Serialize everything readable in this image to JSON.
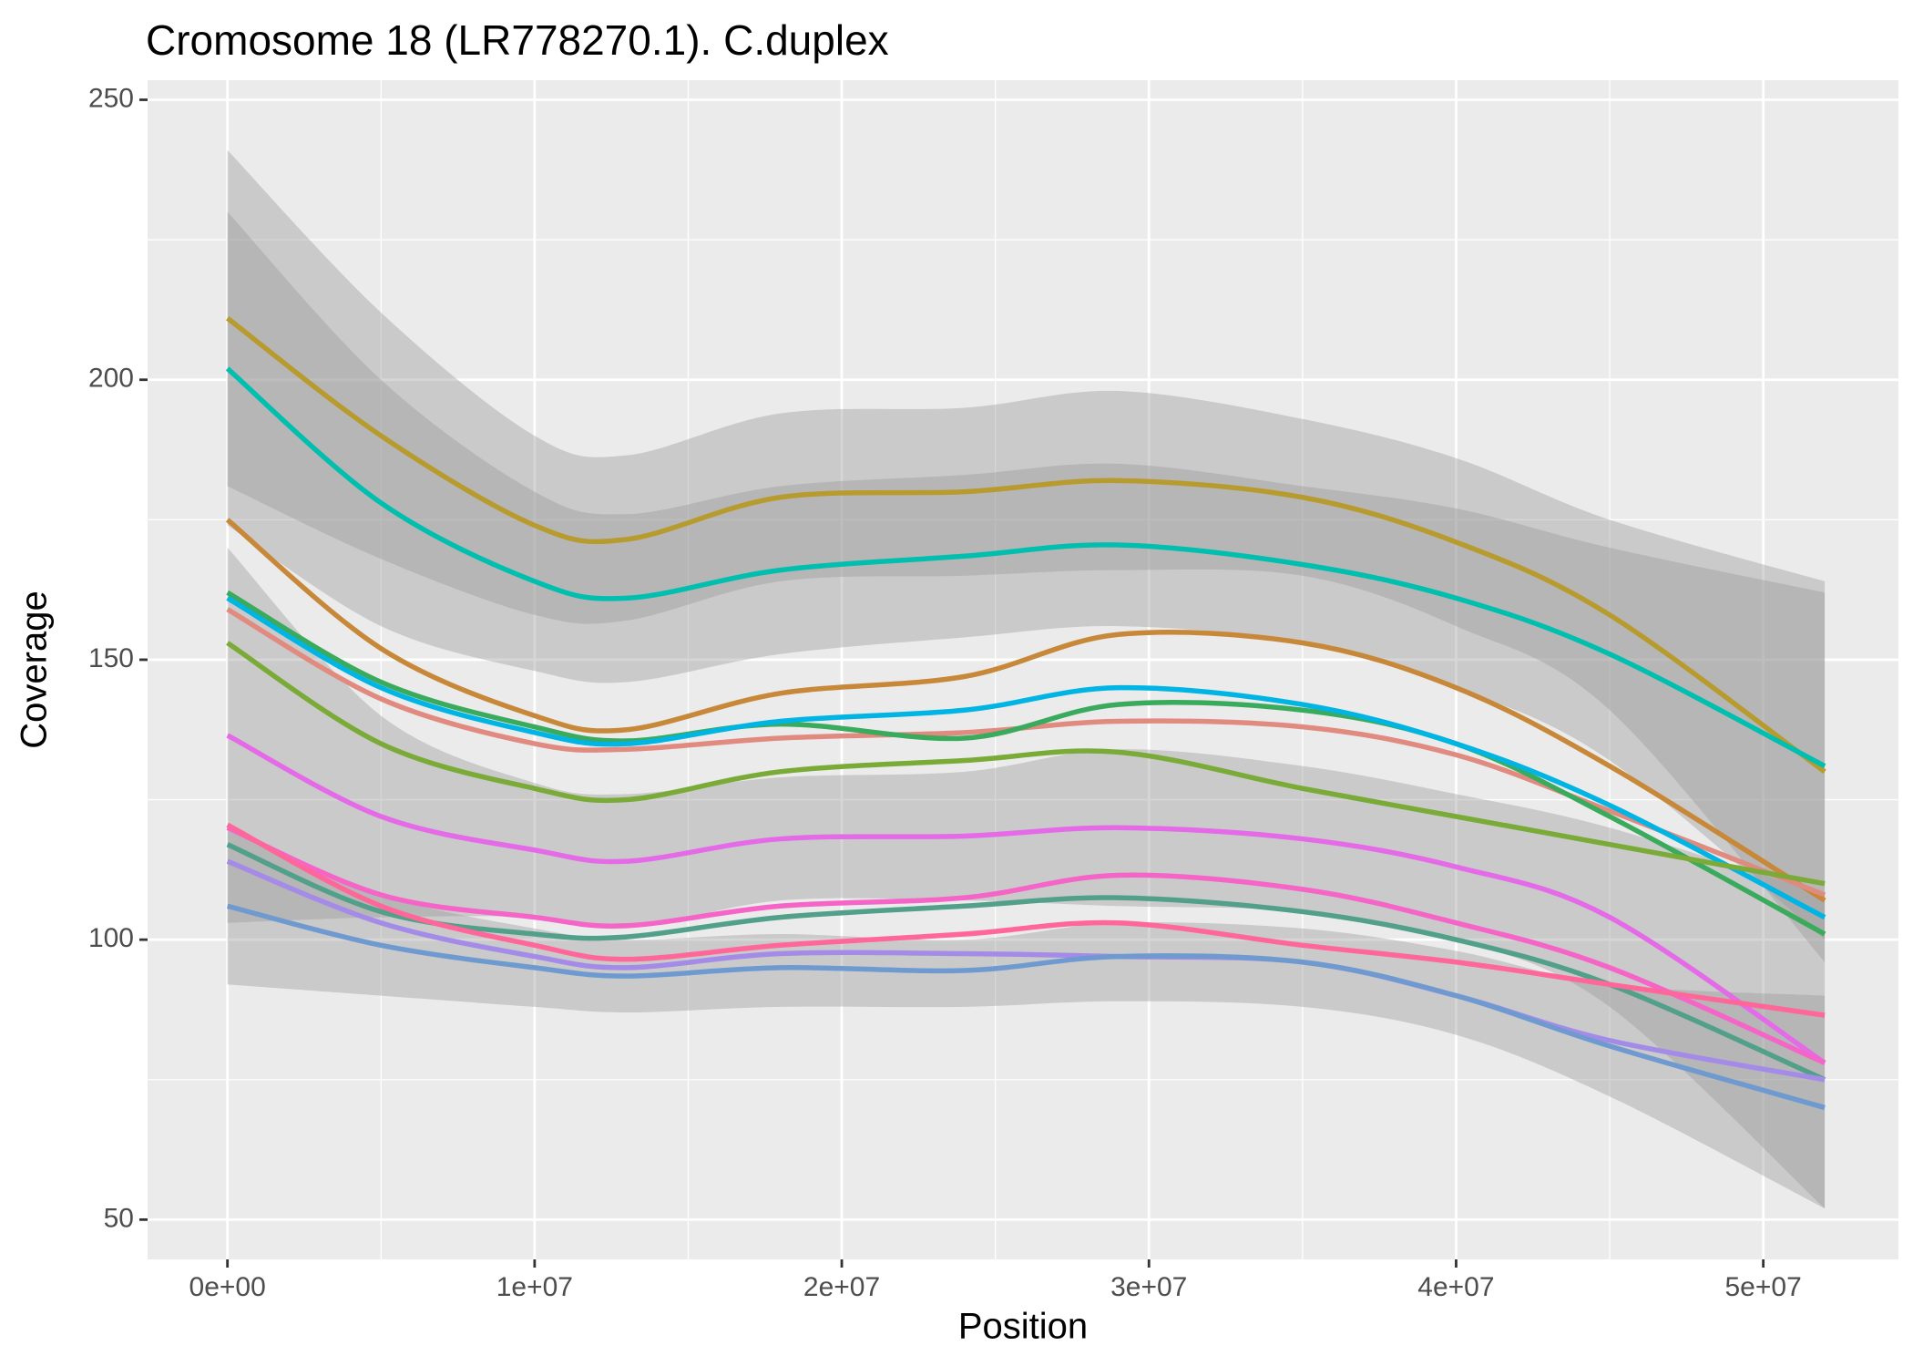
{
  "chart_data": {
    "type": "line",
    "title": "Cromosome 18 (LR778270.1). C.duplex",
    "x_label": "Position",
    "y_label": "Coverage",
    "x": [
      0,
      5000000,
      10000000,
      13000000,
      18000000,
      24000000,
      29000000,
      35000000,
      40000000,
      45000000,
      52000000
    ],
    "xlim": [
      -2600000,
      54400000
    ],
    "xticks": [
      {
        "value": 0,
        "label": "0e+00"
      },
      {
        "value": 10000000,
        "label": "1e+07"
      },
      {
        "value": 20000000,
        "label": "2e+07"
      },
      {
        "value": 30000000,
        "label": "3e+07"
      },
      {
        "value": 40000000,
        "label": "4e+07"
      },
      {
        "value": 50000000,
        "label": "5e+07"
      }
    ],
    "ylim": [
      42.9,
      253.5
    ],
    "yticks": [
      50,
      100,
      150,
      200,
      250
    ],
    "grid": true,
    "series": [
      {
        "color": "#b89b2e",
        "values": [
          211,
          190,
          174,
          171.5,
          179,
          180,
          182,
          179,
          171,
          158,
          130
        ],
        "lower": [
          181,
          168,
          158,
          157,
          164,
          165,
          166,
          165,
          156,
          141,
          96
        ],
        "upper": [
          241,
          212,
          190,
          186.5,
          194,
          195,
          198,
          193,
          186,
          175,
          164
        ]
      },
      {
        "color": "#00bfae",
        "values": [
          202,
          178,
          164,
          161,
          166,
          168.5,
          170.5,
          167,
          161,
          151,
          131
        ],
        "lower": [
          174,
          156,
          148,
          146,
          151,
          154,
          156,
          153,
          145,
          132,
          100
        ],
        "upper": [
          230,
          200,
          180,
          176,
          181,
          183,
          185,
          181,
          177,
          170,
          162
        ]
      },
      {
        "color": "#c8883a",
        "values": [
          175,
          152,
          140,
          137.5,
          144,
          147,
          154.5,
          153,
          145,
          131,
          107
        ]
      },
      {
        "color": "#e08a80",
        "values": [
          159,
          143,
          135,
          134,
          136,
          137,
          139,
          138,
          133,
          123,
          108
        ]
      },
      {
        "color": "#3aaa5c",
        "values": [
          162,
          146,
          138,
          135.5,
          138.5,
          136,
          142,
          141,
          135,
          122,
          101
        ]
      },
      {
        "color": "#00b4e4",
        "values": [
          161,
          145,
          137,
          135,
          139,
          141,
          145,
          142,
          135,
          124,
          104
        ]
      },
      {
        "color": "#7aab38",
        "values": [
          153,
          135,
          127,
          125,
          130,
          132,
          133.5,
          127,
          122,
          117,
          110
        ]
      },
      {
        "color": "#e46ae8",
        "values": [
          136.5,
          122,
          116,
          114,
          118,
          118.5,
          120,
          118,
          113,
          104,
          78
        ],
        "lower": [
          103,
          104,
          104,
          102,
          107,
          107,
          106,
          105,
          100,
          88,
          52
        ],
        "upper": [
          170,
          140,
          128,
          126,
          129,
          130,
          134,
          131,
          126,
          120,
          108
        ]
      },
      {
        "color": "#52a08a",
        "values": [
          117,
          105,
          101,
          100.5,
          104,
          106,
          107.5,
          105,
          100,
          92,
          75
        ]
      },
      {
        "color": "#f565c8",
        "values": [
          120,
          108,
          104,
          102.5,
          106,
          107.5,
          111.5,
          109,
          103,
          95,
          78
        ]
      },
      {
        "color": "#a58be8",
        "values": [
          114,
          103,
          97,
          95,
          97.5,
          97.5,
          97,
          96,
          90,
          82,
          75
        ]
      },
      {
        "color": "#6f9ad0",
        "values": [
          106,
          99,
          95,
          93.5,
          95,
          94.5,
          97,
          96,
          90,
          81,
          70
        ],
        "lower": [
          92,
          90,
          88,
          87,
          88,
          88,
          89,
          88,
          83,
          72,
          52
        ],
        "upper": [
          120,
          108,
          102,
          100,
          101,
          100,
          103,
          102,
          98,
          92,
          90
        ]
      },
      {
        "color": "#ff6699",
        "values": [
          120.5,
          106,
          99,
          96.5,
          99,
          101,
          103,
          99,
          96,
          92,
          86.5
        ]
      }
    ]
  }
}
